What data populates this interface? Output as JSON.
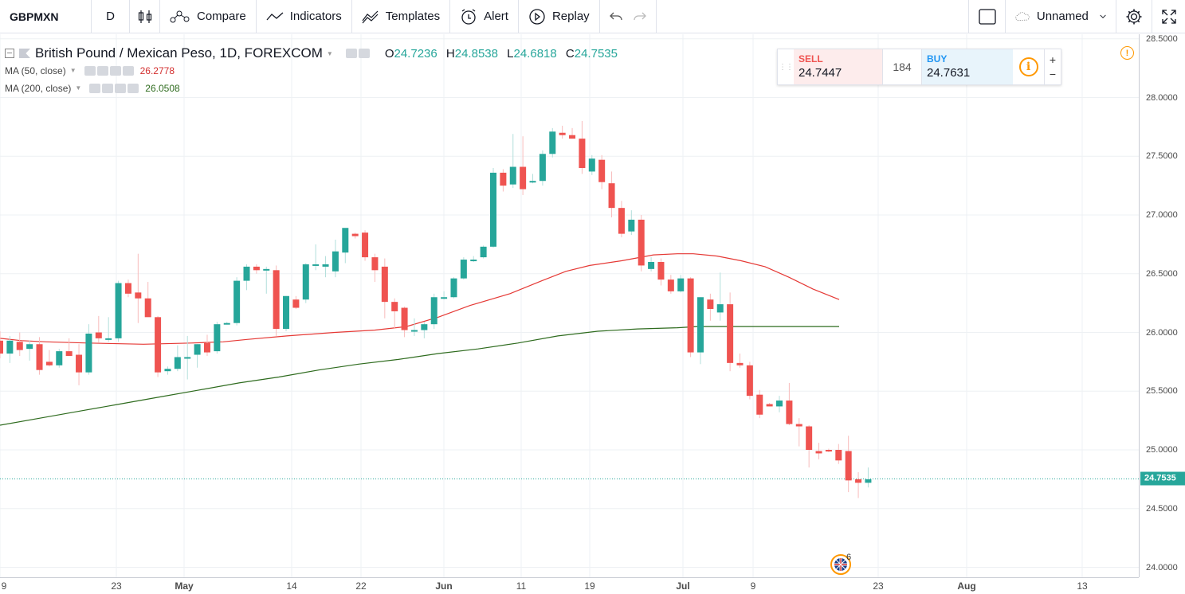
{
  "toolbar": {
    "symbol": "GBPMXN",
    "interval": "D",
    "compare": "Compare",
    "indicators": "Indicators",
    "templates": "Templates",
    "alert": "Alert",
    "replay": "Replay",
    "layout_name": "Unnamed"
  },
  "legend": {
    "title": "British Pound / Mexican Peso, 1D, FOREXCOM",
    "o_label": "O",
    "o_value": "24.7236",
    "h_label": "H",
    "h_value": "24.8538",
    "l_label": "L",
    "l_value": "24.6818",
    "c_label": "C",
    "c_value": "24.7535",
    "ma50_label": "MA (50, close)",
    "ma50_value": "26.2778",
    "ma200_label": "MA (200, close)",
    "ma200_value": "26.0508"
  },
  "trade": {
    "sell_label": "SELL",
    "sell_value": "24.7447",
    "spread": "184",
    "buy_label": "BUY",
    "buy_value": "24.7631",
    "plus": "+",
    "minus": "−",
    "info": "i"
  },
  "events": {
    "count": "6"
  },
  "colors": {
    "up": "#26a69a",
    "down": "#ef5350",
    "ma50": "#e53935",
    "ma200": "#2e6b1e",
    "grid": "#eef1f4"
  },
  "chart_data": {
    "type": "candlestick",
    "symbol": "GBPMXN",
    "interval": "1D",
    "price_ticks": [
      "28.5000",
      "28.0000",
      "27.5000",
      "27.0000",
      "26.5000",
      "26.0000",
      "25.5000",
      "25.0000",
      "24.5000",
      "24.0000"
    ],
    "last_price": "24.7535",
    "time_labels": [
      "9",
      "23",
      "May",
      "14",
      "22",
      "Jun",
      "11",
      "19",
      "Jul",
      "9",
      "23",
      "Aug",
      "13"
    ],
    "ylim": [
      23.9,
      28.5
    ],
    "candles": [
      {
        "o": 25.93,
        "h": 26.01,
        "l": 25.78,
        "c": 25.82
      },
      {
        "o": 25.82,
        "h": 25.97,
        "l": 25.74,
        "c": 25.93
      },
      {
        "o": 25.92,
        "h": 26.0,
        "l": 25.8,
        "c": 25.85
      },
      {
        "o": 25.86,
        "h": 25.93,
        "l": 25.76,
        "c": 25.9
      },
      {
        "o": 25.9,
        "h": 25.96,
        "l": 25.64,
        "c": 25.68
      },
      {
        "o": 25.75,
        "h": 25.85,
        "l": 25.71,
        "c": 25.72
      },
      {
        "o": 25.72,
        "h": 25.86,
        "l": 25.7,
        "c": 25.84
      },
      {
        "o": 25.84,
        "h": 25.95,
        "l": 25.8,
        "c": 25.8
      },
      {
        "o": 25.81,
        "h": 25.9,
        "l": 25.55,
        "c": 25.66
      },
      {
        "o": 25.66,
        "h": 26.07,
        "l": 25.64,
        "c": 25.99
      },
      {
        "o": 26.0,
        "h": 26.14,
        "l": 25.91,
        "c": 25.95
      },
      {
        "o": 25.95,
        "h": 26.13,
        "l": 25.92,
        "c": 25.95
      },
      {
        "o": 25.95,
        "h": 26.44,
        "l": 25.92,
        "c": 26.42
      },
      {
        "o": 26.42,
        "h": 26.45,
        "l": 26.3,
        "c": 26.33
      },
      {
        "o": 26.34,
        "h": 26.67,
        "l": 26.08,
        "c": 26.29
      },
      {
        "o": 26.29,
        "h": 26.43,
        "l": 26.14,
        "c": 26.13
      },
      {
        "o": 26.13,
        "h": 26.14,
        "l": 25.62,
        "c": 25.66
      },
      {
        "o": 25.67,
        "h": 25.71,
        "l": 25.64,
        "c": 25.69
      },
      {
        "o": 25.69,
        "h": 25.89,
        "l": 25.67,
        "c": 25.79
      },
      {
        "o": 25.78,
        "h": 25.97,
        "l": 25.6,
        "c": 25.79
      },
      {
        "o": 25.81,
        "h": 25.9,
        "l": 25.7,
        "c": 25.9
      },
      {
        "o": 25.91,
        "h": 25.98,
        "l": 25.8,
        "c": 25.83
      },
      {
        "o": 25.84,
        "h": 26.09,
        "l": 25.82,
        "c": 26.07
      },
      {
        "o": 26.07,
        "h": 26.09,
        "l": 26.07,
        "c": 26.08
      },
      {
        "o": 26.08,
        "h": 26.47,
        "l": 26.06,
        "c": 26.44
      },
      {
        "o": 26.44,
        "h": 26.58,
        "l": 26.36,
        "c": 26.56
      },
      {
        "o": 26.56,
        "h": 26.58,
        "l": 26.5,
        "c": 26.53
      },
      {
        "o": 26.53,
        "h": 26.56,
        "l": 26.33,
        "c": 26.54
      },
      {
        "o": 26.53,
        "h": 26.57,
        "l": 25.97,
        "c": 26.03
      },
      {
        "o": 26.03,
        "h": 26.31,
        "l": 26.01,
        "c": 26.31
      },
      {
        "o": 26.28,
        "h": 26.31,
        "l": 26.2,
        "c": 26.21
      },
      {
        "o": 26.28,
        "h": 26.59,
        "l": 26.25,
        "c": 26.58
      },
      {
        "o": 26.58,
        "h": 26.75,
        "l": 26.53,
        "c": 26.58
      },
      {
        "o": 26.56,
        "h": 26.65,
        "l": 26.47,
        "c": 26.58
      },
      {
        "o": 26.52,
        "h": 26.79,
        "l": 26.47,
        "c": 26.69
      },
      {
        "o": 26.68,
        "h": 26.86,
        "l": 26.59,
        "c": 26.89
      },
      {
        "o": 26.84,
        "h": 26.85,
        "l": 26.8,
        "c": 26.82
      },
      {
        "o": 26.85,
        "h": 26.87,
        "l": 26.61,
        "c": 26.64
      },
      {
        "o": 26.64,
        "h": 26.67,
        "l": 26.43,
        "c": 26.53
      },
      {
        "o": 26.56,
        "h": 26.63,
        "l": 26.12,
        "c": 26.26
      },
      {
        "o": 26.26,
        "h": 26.29,
        "l": 26.03,
        "c": 26.18
      },
      {
        "o": 26.21,
        "h": 26.22,
        "l": 25.96,
        "c": 26.02
      },
      {
        "o": 26.02,
        "h": 26.12,
        "l": 25.97,
        "c": 26.02
      },
      {
        "o": 26.02,
        "h": 26.09,
        "l": 25.95,
        "c": 26.07
      },
      {
        "o": 26.07,
        "h": 26.33,
        "l": 26.03,
        "c": 26.3
      },
      {
        "o": 26.3,
        "h": 26.35,
        "l": 26.28,
        "c": 26.3
      },
      {
        "o": 26.3,
        "h": 26.47,
        "l": 26.29,
        "c": 26.46
      },
      {
        "o": 26.46,
        "h": 26.64,
        "l": 26.45,
        "c": 26.62
      },
      {
        "o": 26.62,
        "h": 26.65,
        "l": 26.6,
        "c": 26.62
      },
      {
        "o": 26.64,
        "h": 26.74,
        "l": 26.63,
        "c": 26.73
      },
      {
        "o": 26.73,
        "h": 27.4,
        "l": 26.72,
        "c": 27.36
      },
      {
        "o": 27.36,
        "h": 27.39,
        "l": 27.2,
        "c": 27.25
      },
      {
        "o": 27.26,
        "h": 27.69,
        "l": 27.23,
        "c": 27.41
      },
      {
        "o": 27.41,
        "h": 27.67,
        "l": 27.17,
        "c": 27.22
      },
      {
        "o": 27.28,
        "h": 27.35,
        "l": 27.27,
        "c": 27.29
      },
      {
        "o": 27.29,
        "h": 27.55,
        "l": 27.25,
        "c": 27.52
      },
      {
        "o": 27.52,
        "h": 27.74,
        "l": 27.49,
        "c": 27.71
      },
      {
        "o": 27.7,
        "h": 27.76,
        "l": 27.65,
        "c": 27.68
      },
      {
        "o": 27.68,
        "h": 27.74,
        "l": 27.65,
        "c": 27.65
      },
      {
        "o": 27.65,
        "h": 27.8,
        "l": 27.35,
        "c": 27.4
      },
      {
        "o": 27.37,
        "h": 27.51,
        "l": 27.34,
        "c": 27.48
      },
      {
        "o": 27.47,
        "h": 27.51,
        "l": 27.22,
        "c": 27.28
      },
      {
        "o": 27.27,
        "h": 27.37,
        "l": 26.98,
        "c": 27.06
      },
      {
        "o": 27.06,
        "h": 27.12,
        "l": 26.81,
        "c": 26.84
      },
      {
        "o": 26.86,
        "h": 27.04,
        "l": 26.83,
        "c": 26.96
      },
      {
        "o": 26.96,
        "h": 27.0,
        "l": 26.52,
        "c": 26.57
      },
      {
        "o": 26.54,
        "h": 26.64,
        "l": 26.52,
        "c": 26.6
      },
      {
        "o": 26.6,
        "h": 26.63,
        "l": 26.4,
        "c": 26.45
      },
      {
        "o": 26.45,
        "h": 26.49,
        "l": 26.33,
        "c": 26.35
      },
      {
        "o": 26.35,
        "h": 26.49,
        "l": 26.34,
        "c": 26.46
      },
      {
        "o": 26.46,
        "h": 26.47,
        "l": 25.79,
        "c": 25.83
      },
      {
        "o": 25.83,
        "h": 26.3,
        "l": 25.73,
        "c": 26.3
      },
      {
        "o": 26.28,
        "h": 26.33,
        "l": 26.1,
        "c": 26.2
      },
      {
        "o": 26.17,
        "h": 26.51,
        "l": 26.1,
        "c": 26.24
      },
      {
        "o": 26.24,
        "h": 26.34,
        "l": 25.67,
        "c": 25.74
      },
      {
        "o": 25.74,
        "h": 25.82,
        "l": 25.7,
        "c": 25.72
      },
      {
        "o": 25.72,
        "h": 25.75,
        "l": 25.43,
        "c": 25.46
      },
      {
        "o": 25.47,
        "h": 25.51,
        "l": 25.27,
        "c": 25.3
      },
      {
        "o": 25.39,
        "h": 25.4,
        "l": 25.37,
        "c": 25.37
      },
      {
        "o": 25.37,
        "h": 25.46,
        "l": 25.32,
        "c": 25.42
      },
      {
        "o": 25.42,
        "h": 25.57,
        "l": 25.21,
        "c": 25.22
      },
      {
        "o": 25.22,
        "h": 25.27,
        "l": 25.03,
        "c": 25.2
      },
      {
        "o": 25.2,
        "h": 25.21,
        "l": 24.85,
        "c": 25.0
      },
      {
        "o": 24.99,
        "h": 25.06,
        "l": 24.92,
        "c": 24.97
      },
      {
        "o": 25.0,
        "h": 25.01,
        "l": 24.98,
        "c": 24.99
      },
      {
        "o": 25.0,
        "h": 25.05,
        "l": 24.88,
        "c": 24.91
      },
      {
        "o": 24.99,
        "h": 25.12,
        "l": 24.64,
        "c": 24.74
      },
      {
        "o": 24.75,
        "h": 24.81,
        "l": 24.59,
        "c": 24.72
      },
      {
        "o": 24.72,
        "h": 24.85,
        "l": 24.68,
        "c": 24.75
      }
    ],
    "ma50": [
      [
        0,
        25.95
      ],
      [
        27,
        25.93
      ],
      [
        58,
        25.92
      ],
      [
        110,
        25.91
      ],
      [
        180,
        25.9
      ],
      [
        240,
        25.91
      ],
      [
        280,
        25.92
      ],
      [
        310,
        25.94
      ],
      [
        360,
        25.97
      ],
      [
        420,
        26.0
      ],
      [
        470,
        26.02
      ],
      [
        510,
        26.05
      ],
      [
        550,
        26.13
      ],
      [
        590,
        26.23
      ],
      [
        640,
        26.33
      ],
      [
        680,
        26.44
      ],
      [
        710,
        26.52
      ],
      [
        740,
        26.57
      ],
      [
        780,
        26.61
      ],
      [
        820,
        26.66
      ],
      [
        850,
        26.67
      ],
      [
        870,
        26.67
      ],
      [
        900,
        26.65
      ],
      [
        930,
        26.61
      ],
      [
        960,
        26.56
      ],
      [
        990,
        26.47
      ],
      [
        1020,
        26.37
      ],
      [
        1053,
        26.28
      ]
    ],
    "ma200": [
      [
        0,
        25.21
      ],
      [
        50,
        25.27
      ],
      [
        100,
        25.33
      ],
      [
        150,
        25.39
      ],
      [
        200,
        25.45
      ],
      [
        250,
        25.51
      ],
      [
        300,
        25.57
      ],
      [
        350,
        25.62
      ],
      [
        400,
        25.68
      ],
      [
        450,
        25.73
      ],
      [
        500,
        25.77
      ],
      [
        550,
        25.82
      ],
      [
        600,
        25.86
      ],
      [
        650,
        25.91
      ],
      [
        700,
        25.97
      ],
      [
        750,
        26.01
      ],
      [
        800,
        26.03
      ],
      [
        850,
        26.04
      ],
      [
        875,
        26.05
      ],
      [
        900,
        26.05
      ],
      [
        950,
        26.05
      ],
      [
        1000,
        26.05
      ],
      [
        1053,
        26.05
      ]
    ]
  }
}
